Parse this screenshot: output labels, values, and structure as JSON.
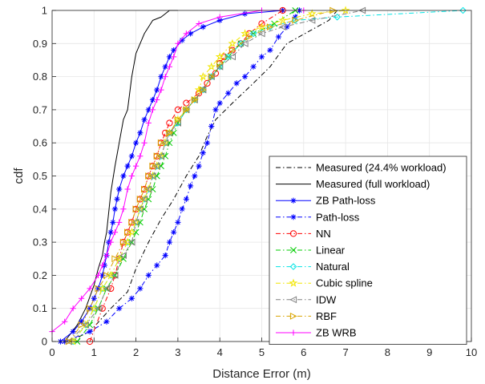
{
  "chart_data": {
    "type": "line",
    "title": "",
    "xlabel": "Distance Error (m)",
    "ylabel": "cdf",
    "xlim": [
      0,
      10
    ],
    "ylim": [
      0,
      1
    ],
    "xticks": [
      0,
      1,
      2,
      3,
      4,
      5,
      6,
      7,
      8,
      9,
      10
    ],
    "yticks": [
      0,
      0.1,
      0.2,
      0.3,
      0.4,
      0.5,
      0.6,
      0.7,
      0.8,
      0.9,
      1
    ],
    "xtick_labels": [
      "0",
      "1",
      "2",
      "3",
      "4",
      "5",
      "6",
      "7",
      "8",
      "9",
      "10"
    ],
    "ytick_labels": [
      "0",
      "0.1",
      "0.2",
      "0.3",
      "0.4",
      "0.5",
      "0.6",
      "0.7",
      "0.8",
      "0.9",
      "1"
    ],
    "grid": true,
    "legend_position": "lower-right",
    "series": [
      {
        "name": "Measured (24.4% workload)",
        "color": "#000000",
        "dash": "dashdot",
        "marker": "none",
        "x": [
          0.4,
          0.9,
          1.4,
          1.8,
          2.0,
          2.3,
          2.6,
          2.9,
          3.2,
          3.5,
          3.7,
          3.9,
          4.3,
          4.8,
          5.2,
          5.6,
          6.6,
          6.8
        ],
        "y": [
          0.0,
          0.03,
          0.1,
          0.15,
          0.22,
          0.3,
          0.37,
          0.43,
          0.5,
          0.56,
          0.62,
          0.67,
          0.72,
          0.78,
          0.83,
          0.9,
          0.97,
          1.0
        ]
      },
      {
        "name": "Measured (full workload)",
        "color": "#000000",
        "dash": "solid",
        "marker": "none",
        "x": [
          0.3,
          0.6,
          0.8,
          1.0,
          1.1,
          1.2,
          1.25,
          1.3,
          1.4,
          1.5,
          1.6,
          1.7,
          1.8,
          1.9,
          2.0,
          2.2,
          2.4,
          2.6,
          2.8,
          3.0
        ],
        "y": [
          0.0,
          0.05,
          0.1,
          0.17,
          0.22,
          0.26,
          0.3,
          0.33,
          0.45,
          0.53,
          0.6,
          0.67,
          0.7,
          0.8,
          0.87,
          0.93,
          0.97,
          0.98,
          1.0,
          1.0
        ]
      },
      {
        "name": "ZB Path-loss",
        "color": "#0000ff",
        "dash": "solid",
        "marker": "asterisk",
        "x": [
          0.2,
          0.5,
          0.7,
          0.9,
          1.0,
          1.1,
          1.2,
          1.25,
          1.3,
          1.35,
          1.4,
          1.45,
          1.5,
          1.55,
          1.6,
          1.7,
          1.8,
          1.9,
          2.0,
          2.1,
          2.2,
          2.3,
          2.4,
          2.5,
          2.6,
          2.7,
          2.8,
          2.9,
          3.1,
          3.3,
          3.6,
          4.0,
          4.6,
          5.5
        ],
        "y": [
          0.0,
          0.03,
          0.06,
          0.1,
          0.13,
          0.16,
          0.2,
          0.23,
          0.26,
          0.3,
          0.33,
          0.36,
          0.4,
          0.43,
          0.46,
          0.5,
          0.53,
          0.56,
          0.6,
          0.63,
          0.67,
          0.7,
          0.73,
          0.76,
          0.8,
          0.83,
          0.86,
          0.88,
          0.91,
          0.93,
          0.95,
          0.97,
          0.99,
          1.0
        ]
      },
      {
        "name": "Path-loss",
        "color": "#0000ff",
        "dash": "dashdot",
        "marker": "asterisk",
        "x": [
          0.3,
          0.9,
          1.3,
          1.6,
          1.9,
          2.1,
          2.3,
          2.5,
          2.7,
          2.8,
          2.9,
          3.0,
          3.1,
          3.2,
          3.3,
          3.4,
          3.5,
          3.6,
          3.7,
          3.8,
          3.9,
          4.0,
          4.2,
          4.4,
          4.6,
          4.8,
          5.0,
          5.2,
          5.4,
          5.6,
          5.8,
          5.9
        ],
        "y": [
          0.0,
          0.03,
          0.06,
          0.1,
          0.13,
          0.16,
          0.2,
          0.23,
          0.26,
          0.3,
          0.33,
          0.36,
          0.4,
          0.43,
          0.47,
          0.5,
          0.53,
          0.57,
          0.6,
          0.65,
          0.7,
          0.72,
          0.75,
          0.78,
          0.8,
          0.83,
          0.86,
          0.88,
          0.92,
          0.95,
          0.98,
          1.0
        ]
      },
      {
        "name": "NN",
        "color": "#ff0000",
        "dash": "dashdot",
        "marker": "circle",
        "x": [
          0.9,
          1.2,
          1.4,
          1.5,
          1.6,
          1.7,
          1.8,
          1.9,
          2.0,
          2.1,
          2.2,
          2.3,
          2.4,
          2.5,
          2.6,
          2.7,
          2.8,
          3.0,
          3.2,
          3.5,
          3.7,
          3.9,
          4.0,
          4.1,
          4.3,
          4.5,
          4.7,
          5.0,
          5.5
        ],
        "y": [
          0.0,
          0.1,
          0.16,
          0.2,
          0.25,
          0.3,
          0.33,
          0.36,
          0.4,
          0.43,
          0.46,
          0.5,
          0.53,
          0.56,
          0.6,
          0.63,
          0.66,
          0.7,
          0.72,
          0.75,
          0.78,
          0.81,
          0.84,
          0.86,
          0.88,
          0.9,
          0.93,
          0.96,
          1.0
        ]
      },
      {
        "name": "Linear",
        "color": "#00cc00",
        "dash": "dashdot",
        "marker": "x",
        "x": [
          0.6,
          0.9,
          1.1,
          1.3,
          1.5,
          1.7,
          1.9,
          2.0,
          2.1,
          2.2,
          2.3,
          2.4,
          2.5,
          2.6,
          2.7,
          2.8,
          2.9,
          3.0,
          3.2,
          3.4,
          3.6,
          3.8,
          4.0,
          4.2,
          4.5,
          4.8,
          5.3,
          5.8
        ],
        "y": [
          0.0,
          0.05,
          0.1,
          0.16,
          0.2,
          0.25,
          0.3,
          0.33,
          0.36,
          0.4,
          0.43,
          0.46,
          0.5,
          0.53,
          0.56,
          0.6,
          0.63,
          0.66,
          0.7,
          0.73,
          0.76,
          0.8,
          0.83,
          0.86,
          0.9,
          0.93,
          0.96,
          1.0
        ]
      },
      {
        "name": "Natural",
        "color": "#00e5e5",
        "dash": "dashdot",
        "marker": "diamond",
        "x": [
          0.5,
          0.8,
          1.0,
          1.2,
          1.4,
          1.6,
          1.8,
          2.0,
          2.1,
          2.2,
          2.3,
          2.4,
          2.5,
          2.6,
          2.7,
          2.8,
          3.0,
          3.2,
          3.4,
          3.6,
          3.8,
          4.0,
          4.2,
          4.5,
          4.8,
          5.2,
          5.8,
          6.8,
          9.8
        ],
        "y": [
          0.0,
          0.05,
          0.1,
          0.16,
          0.2,
          0.25,
          0.3,
          0.36,
          0.4,
          0.43,
          0.46,
          0.5,
          0.53,
          0.56,
          0.6,
          0.63,
          0.66,
          0.7,
          0.73,
          0.76,
          0.8,
          0.83,
          0.86,
          0.9,
          0.93,
          0.95,
          0.97,
          0.98,
          1.0
        ]
      },
      {
        "name": "Cubic spline",
        "color": "#f2e600",
        "dash": "dashdot",
        "marker": "star",
        "x": [
          0.5,
          0.8,
          1.0,
          1.2,
          1.4,
          1.6,
          1.8,
          1.9,
          2.0,
          2.1,
          2.2,
          2.3,
          2.4,
          2.5,
          2.6,
          2.7,
          2.8,
          3.0,
          3.2,
          3.4,
          3.5,
          3.6,
          3.8,
          4.0,
          4.3,
          4.6,
          5.0,
          5.5,
          6.2,
          7.0
        ],
        "y": [
          0.0,
          0.05,
          0.1,
          0.16,
          0.2,
          0.25,
          0.3,
          0.33,
          0.36,
          0.4,
          0.43,
          0.46,
          0.5,
          0.53,
          0.56,
          0.6,
          0.63,
          0.67,
          0.7,
          0.73,
          0.76,
          0.8,
          0.83,
          0.86,
          0.9,
          0.93,
          0.95,
          0.97,
          0.99,
          1.0
        ]
      },
      {
        "name": "IDW",
        "color": "#808080",
        "dash": "dashdot",
        "marker": "triangle-left",
        "x": [
          0.4,
          0.8,
          1.1,
          1.3,
          1.5,
          1.7,
          1.9,
          2.0,
          2.1,
          2.2,
          2.3,
          2.4,
          2.5,
          2.6,
          2.7,
          2.8,
          3.0,
          3.2,
          3.4,
          3.6,
          3.8,
          4.0,
          4.3,
          4.6,
          5.0,
          5.5,
          6.2,
          7.4
        ],
        "y": [
          0.0,
          0.05,
          0.1,
          0.16,
          0.2,
          0.26,
          0.3,
          0.36,
          0.4,
          0.43,
          0.46,
          0.5,
          0.53,
          0.56,
          0.6,
          0.63,
          0.66,
          0.7,
          0.73,
          0.76,
          0.8,
          0.83,
          0.86,
          0.9,
          0.93,
          0.95,
          0.97,
          1.0
        ]
      },
      {
        "name": "RBF",
        "color": "#d9a400",
        "dash": "dashdot",
        "marker": "triangle-right",
        "x": [
          0.4,
          0.7,
          0.9,
          1.1,
          1.3,
          1.5,
          1.7,
          1.8,
          1.9,
          2.0,
          2.1,
          2.2,
          2.3,
          2.4,
          2.5,
          2.6,
          2.8,
          3.0,
          3.2,
          3.4,
          3.6,
          3.8,
          4.0,
          4.3,
          4.7,
          5.2,
          5.8,
          6.7
        ],
        "y": [
          0.0,
          0.05,
          0.1,
          0.16,
          0.2,
          0.25,
          0.3,
          0.33,
          0.36,
          0.4,
          0.43,
          0.46,
          0.5,
          0.53,
          0.56,
          0.6,
          0.63,
          0.67,
          0.7,
          0.73,
          0.76,
          0.8,
          0.84,
          0.88,
          0.92,
          0.95,
          0.97,
          1.0
        ]
      },
      {
        "name": "ZB WRB",
        "color": "#ff00ff",
        "dash": "solid",
        "marker": "plus",
        "x": [
          0.0,
          0.3,
          0.5,
          0.7,
          0.9,
          1.1,
          1.2,
          1.3,
          1.4,
          1.5,
          1.6,
          1.7,
          1.8,
          1.9,
          2.0,
          2.1,
          2.2,
          2.3,
          2.4,
          2.5,
          2.6,
          2.7,
          2.8,
          2.9,
          3.0,
          3.2,
          3.5,
          4.0,
          5.0,
          6.0
        ],
        "y": [
          0.03,
          0.06,
          0.1,
          0.13,
          0.16,
          0.2,
          0.23,
          0.26,
          0.3,
          0.33,
          0.36,
          0.4,
          0.46,
          0.5,
          0.53,
          0.56,
          0.6,
          0.66,
          0.7,
          0.73,
          0.76,
          0.8,
          0.83,
          0.86,
          0.9,
          0.93,
          0.96,
          0.98,
          1.0,
          1.0
        ]
      }
    ]
  }
}
